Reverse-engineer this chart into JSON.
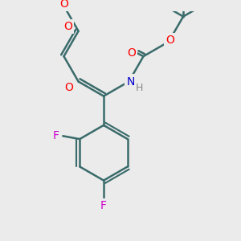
{
  "background_color": "#ebebeb",
  "bond_color": "#3a6b6b",
  "bond_width": 1.8,
  "atom_colors": {
    "O": "#ff0000",
    "N": "#0000cc",
    "F": "#cc00cc",
    "H": "#888888",
    "C": "#3a6b6b"
  },
  "figsize": [
    3.0,
    3.0
  ],
  "dpi": 100
}
